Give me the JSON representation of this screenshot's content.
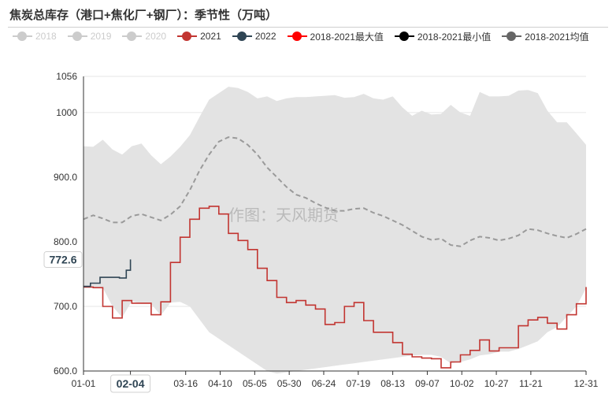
{
  "title": "焦炭总库存（港口+焦化厂+钢厂）：季节性（万吨）",
  "watermark": "作图：天风期货",
  "legend": [
    {
      "label": "2018",
      "color": "#cccccc",
      "muted": true,
      "kind": "dot"
    },
    {
      "label": "2019",
      "color": "#cccccc",
      "muted": true,
      "kind": "dot"
    },
    {
      "label": "2020",
      "color": "#cccccc",
      "muted": true,
      "kind": "dot"
    },
    {
      "label": "2021",
      "color": "#c23531",
      "muted": false,
      "kind": "dot"
    },
    {
      "label": "2022",
      "color": "#2f4554",
      "muted": false,
      "kind": "dot"
    },
    {
      "label": "2018-2021最大值",
      "color": "#ff0000",
      "muted": false,
      "kind": "dot"
    },
    {
      "label": "2018-2021最小值",
      "color": "#000000",
      "muted": false,
      "kind": "dot"
    },
    {
      "label": "2018-2021均值",
      "color": "#666666",
      "muted": false,
      "kind": "dot"
    }
  ],
  "chart_data": {
    "type": "line",
    "title": "焦炭总库存（港口+焦化厂+钢厂）：季节性（万吨）",
    "ylim": [
      600,
      1056
    ],
    "yticks": [
      "600.0",
      "700.0",
      "800.0",
      "900.0",
      "1000",
      "1056"
    ],
    "ytick_values": [
      600,
      700,
      800,
      900,
      1000,
      1056
    ],
    "x_tick_labels": [
      "01-01",
      "02-04",
      "03-16",
      "04-10",
      "05-05",
      "05-30",
      "06-24",
      "07-19",
      "08-13",
      "09-07",
      "10-02",
      "10-27",
      "11-21",
      "12-31"
    ],
    "x_tick_days": [
      0,
      34,
      74,
      99,
      124,
      149,
      174,
      199,
      224,
      249,
      274,
      299,
      324,
      364
    ],
    "x_range": [
      0,
      364
    ],
    "axis_pointer_x_label": "02-04",
    "axis_pointer_x_day": 34,
    "axis_pointer_y_label": "772.6",
    "axis_pointer_y_value": 772.6,
    "band": {
      "name_max": "2018-2021最大值",
      "name_min": "2018-2021最小值",
      "x": [
        0,
        7,
        14,
        21,
        28,
        35,
        42,
        49,
        56,
        63,
        70,
        77,
        84,
        91,
        98,
        105,
        112,
        119,
        126,
        133,
        140,
        147,
        154,
        161,
        168,
        175,
        182,
        189,
        196,
        203,
        210,
        217,
        224,
        231,
        238,
        245,
        252,
        259,
        266,
        273,
        280,
        287,
        294,
        301,
        308,
        315,
        322,
        329,
        336,
        343,
        350,
        357,
        364
      ],
      "max": [
        948,
        947,
        958,
        943,
        935,
        948,
        952,
        934,
        920,
        932,
        947,
        965,
        993,
        1020,
        1030,
        1040,
        1038,
        1032,
        1022,
        1025,
        1018,
        1022,
        1024,
        1024,
        1025,
        1026,
        1027,
        1023,
        1024,
        1029,
        1022,
        1020,
        1025,
        1008,
        995,
        1003,
        997,
        998,
        1012,
        1000,
        995,
        1032,
        1025,
        1025,
        1026,
        1034,
        1035,
        1030,
        1003,
        985,
        985,
        968,
        950
      ],
      "min": [
        730,
        730,
        729,
        700,
        683,
        708,
        704,
        704,
        686,
        706,
        707,
        700,
        680,
        660,
        650,
        640,
        630,
        620,
        610,
        600,
        596,
        598,
        600,
        602,
        604,
        606,
        608,
        610,
        612,
        614,
        616,
        618,
        620,
        622,
        624,
        625,
        625,
        622,
        612,
        614,
        618,
        624,
        626,
        630,
        630,
        634,
        640,
        646,
        660,
        668,
        684,
        700,
        728
      ]
    },
    "series": [
      {
        "name": "2018-2021均值",
        "color": "#9a9a9a",
        "dash": true,
        "x": [
          0,
          7,
          14,
          21,
          28,
          35,
          42,
          49,
          56,
          63,
          70,
          77,
          84,
          91,
          98,
          105,
          112,
          119,
          126,
          133,
          140,
          147,
          154,
          161,
          168,
          175,
          182,
          189,
          196,
          203,
          210,
          217,
          224,
          231,
          238,
          245,
          252,
          259,
          266,
          273,
          280,
          287,
          294,
          301,
          308,
          315,
          322,
          329,
          336,
          343,
          350,
          357,
          364
        ],
        "values": [
          835,
          841,
          836,
          830,
          830,
          840,
          843,
          838,
          833,
          842,
          855,
          880,
          910,
          935,
          955,
          962,
          960,
          950,
          935,
          915,
          900,
          885,
          873,
          868,
          860,
          853,
          848,
          848,
          851,
          852,
          845,
          840,
          833,
          826,
          817,
          808,
          803,
          805,
          795,
          793,
          802,
          808,
          806,
          802,
          805,
          810,
          820,
          818,
          813,
          809,
          806,
          812,
          820
        ]
      },
      {
        "name": "2021",
        "color": "#c23531",
        "step": true,
        "x": [
          0,
          7,
          14,
          21,
          28,
          35,
          42,
          49,
          56,
          63,
          70,
          77,
          84,
          91,
          98,
          105,
          112,
          119,
          126,
          133,
          140,
          147,
          154,
          161,
          168,
          175,
          182,
          189,
          196,
          203,
          210,
          217,
          224,
          231,
          238,
          245,
          252,
          259,
          266,
          273,
          280,
          287,
          294,
          301,
          308,
          315,
          322,
          329,
          336,
          343,
          350,
          357,
          364
        ],
        "values": [
          730,
          729,
          700,
          682,
          709,
          705,
          705,
          687,
          707,
          768,
          807,
          835,
          852,
          855,
          843,
          813,
          802,
          788,
          759,
          740,
          714,
          706,
          709,
          702,
          696,
          672,
          675,
          700,
          706,
          678,
          660,
          660,
          644,
          626,
          622,
          620,
          619,
          605,
          614,
          625,
          632,
          648,
          631,
          636,
          636,
          670,
          679,
          683,
          674,
          665,
          687,
          704,
          730
        ]
      },
      {
        "name": "2022",
        "color": "#2f4554",
        "step": true,
        "x": [
          0,
          5,
          12,
          19,
          26,
          31,
          34
        ],
        "values": [
          731,
          736,
          745,
          745,
          744,
          756,
          772.6
        ]
      }
    ]
  }
}
